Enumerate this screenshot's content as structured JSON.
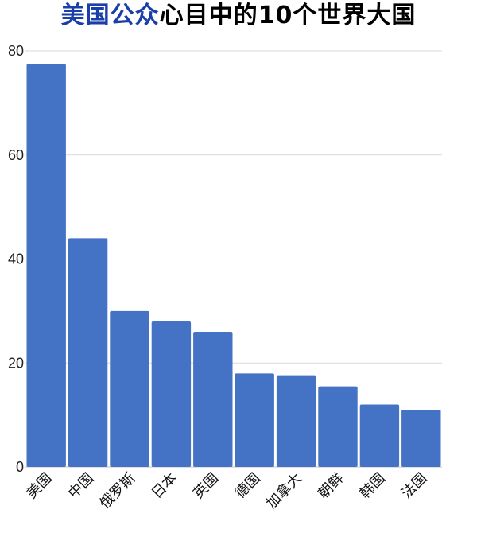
{
  "title": {
    "highlight": "美国公众",
    "rest": "心目中的10个世界大国"
  },
  "colors": {
    "bar": "#4472c4",
    "title_highlight": "#1a3fa8",
    "grid": "#d9d9d9"
  },
  "chart_data": {
    "type": "bar",
    "categories": [
      "美国",
      "中国",
      "俄罗斯",
      "日本",
      "英国",
      "德国",
      "加拿大",
      "朝鲜",
      "韩国",
      "法国"
    ],
    "values": [
      77.5,
      44,
      30,
      28,
      26,
      18,
      17.5,
      15.5,
      12,
      11
    ],
    "ylim": [
      0,
      80
    ],
    "yticks": [
      0,
      20,
      40,
      60,
      80
    ],
    "grid": true,
    "legend": "none",
    "title": "美国公众心目中的10个世界大国"
  }
}
